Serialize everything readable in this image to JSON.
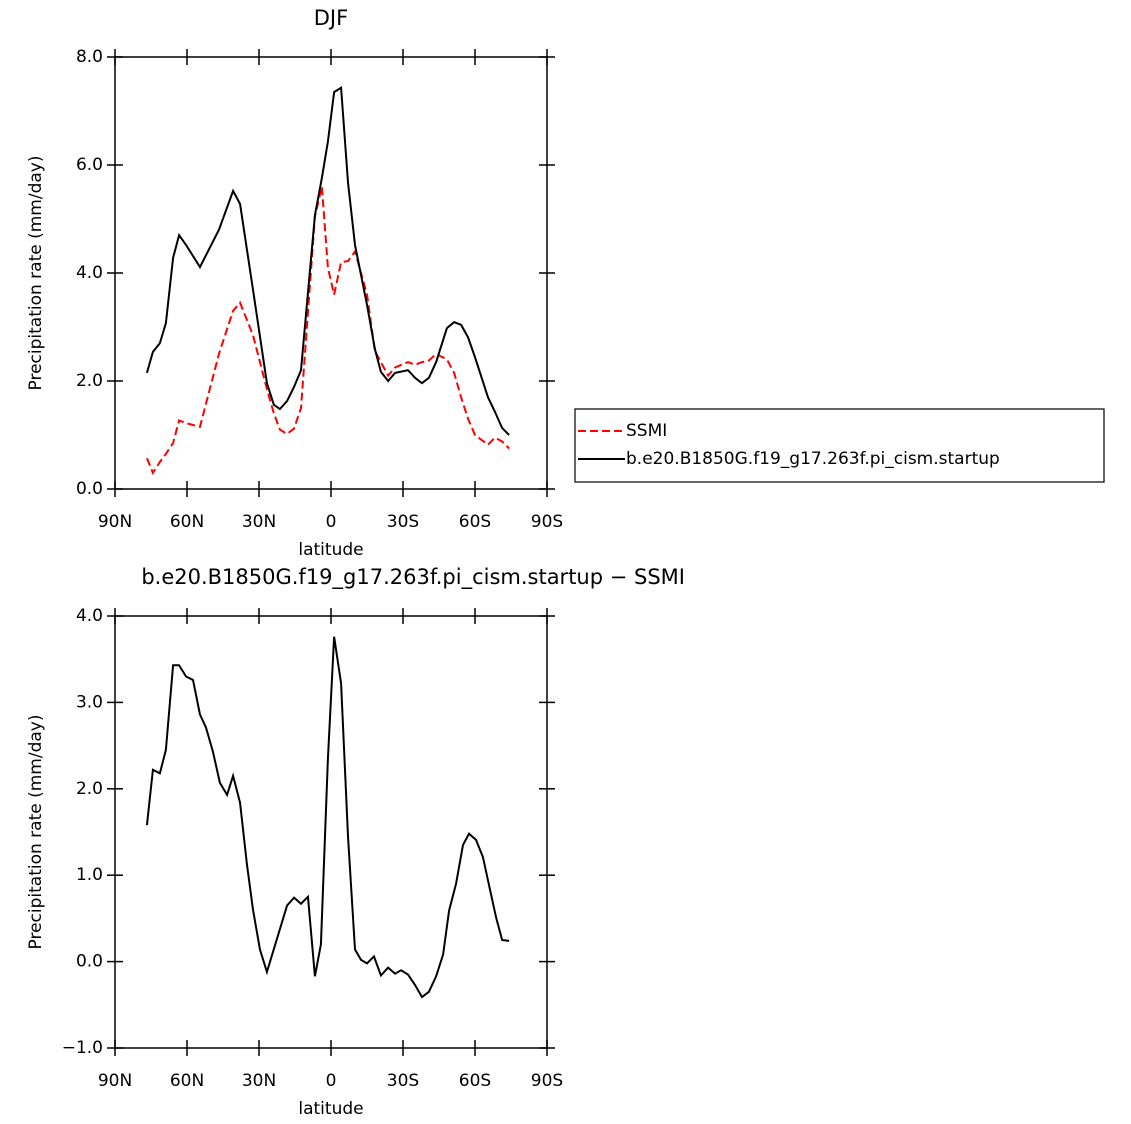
{
  "chart_data": [
    {
      "type": "line",
      "title": "DJF",
      "x_label": "latitude",
      "y_label": "Precipitation rate (mm/day)",
      "x": [
        76.7,
        74.2,
        71.3,
        68.8,
        65.8,
        63.3,
        60.4,
        54.6,
        46.7,
        40.8,
        37.9,
        32.5,
        26.7,
        23.8,
        21.3,
        18.3,
        15.4,
        12.5,
        6.7,
        3.8,
        1.3,
        -1.3,
        -4.2,
        -7.1,
        -10,
        -15,
        -18.3,
        -20.8,
        -23.8,
        -26.7,
        -32.1,
        -35,
        -37.9,
        -40.8,
        -43.8,
        -48.3,
        -51.3,
        -54.2,
        -57.1,
        -60,
        -65.4,
        -68.3,
        -71.3,
        -74.2
      ],
      "xlim": [
        90,
        -90
      ],
      "xticks": [
        {
          "value": 90,
          "label": "90N"
        },
        {
          "value": 60,
          "label": "60N"
        },
        {
          "value": 30,
          "label": "30N"
        },
        0,
        {
          "value": -30,
          "label": "30S"
        },
        {
          "value": -60,
          "label": "60S"
        },
        {
          "value": -90,
          "label": "90S"
        }
      ],
      "ylim": [
        0,
        8
      ],
      "yticks": [
        {
          "value": 0,
          "label": "0.0"
        },
        {
          "value": 2,
          "label": "2.0"
        },
        {
          "value": 4,
          "label": "4.0"
        },
        {
          "value": 6,
          "label": "6.0"
        },
        {
          "value": 8,
          "label": "8.0"
        }
      ],
      "legend": "right",
      "series": [
        {
          "name": "SSMI",
          "color": "#ff0000",
          "dashed": true,
          "values": [
            0.57,
            0.3,
            0.5,
            0.65,
            0.85,
            1.27,
            1.22,
            1.15,
            2.5,
            3.3,
            3.45,
            2.85,
            1.85,
            1.4,
            1.1,
            1.02,
            1.12,
            1.5,
            5.05,
            5.6,
            4.1,
            3.6,
            4.2,
            4.22,
            4.4,
            3.6,
            2.55,
            2.35,
            2.1,
            2.25,
            2.35,
            2.3,
            2.35,
            2.38,
            2.5,
            2.4,
            2.15,
            1.7,
            1.3,
            1.0,
            0.82,
            0.95,
            0.88,
            0.75
          ]
        },
        {
          "name": "b.e20.B1850G.f19_g17.263f.pi_cism.startup",
          "color": "#000000",
          "dashed": false,
          "values": [
            2.15,
            2.54,
            2.7,
            3.07,
            4.28,
            4.7,
            4.52,
            4.11,
            4.8,
            5.52,
            5.28,
            3.69,
            1.96,
            1.56,
            1.48,
            1.63,
            1.89,
            2.2,
            5.07,
            5.76,
            6.43,
            7.35,
            7.43,
            5.67,
            4.52,
            3.41,
            2.59,
            2.17,
            2.0,
            2.15,
            2.2,
            2.06,
            1.96,
            2.06,
            2.35,
            2.98,
            3.09,
            3.04,
            2.81,
            2.44,
            1.7,
            1.43,
            1.13,
            1.0
          ]
        }
      ]
    },
    {
      "type": "line",
      "title": "b.e20.B1850G.f19_g17.263f.pi_cism.startup − SSMI",
      "x_label": "latitude",
      "y_label": "Precipitation rate (mm/day)",
      "x": [
        76.7,
        74.2,
        71.3,
        68.8,
        65.8,
        63.3,
        60.4,
        57.5,
        54.6,
        52.1,
        49.2,
        46.3,
        43.3,
        40.8,
        37.9,
        35,
        32.5,
        29.6,
        26.7,
        18.3,
        15.4,
        12.5,
        9.6,
        6.7,
        4.2,
        1.3,
        -1.3,
        -4.2,
        -7.1,
        -10,
        -12.5,
        -15,
        -17.9,
        -20.8,
        -23.8,
        -26.7,
        -29.2,
        -32.1,
        -35,
        -37.9,
        -40.8,
        -43.8,
        -46.7,
        -49.2,
        -52.1,
        -55,
        -57.5,
        -60.4,
        -63.3,
        -65.8,
        -68.8,
        -71.3,
        -74.2
      ],
      "xlim": [
        90,
        -90
      ],
      "xticks": [
        {
          "value": 90,
          "label": "90N"
        },
        {
          "value": 60,
          "label": "60N"
        },
        {
          "value": 30,
          "label": "30N"
        },
        0,
        {
          "value": -30,
          "label": "30S"
        },
        {
          "value": -60,
          "label": "60S"
        },
        {
          "value": -90,
          "label": "90S"
        }
      ],
      "ylim": [
        -1,
        4
      ],
      "yticks": [
        {
          "value": -1,
          "label": "−1.0"
        },
        {
          "value": 0,
          "label": "0.0"
        },
        {
          "value": 1,
          "label": "1.0"
        },
        {
          "value": 2,
          "label": "2.0"
        },
        {
          "value": 3,
          "label": "3.0"
        },
        {
          "value": 4,
          "label": "4.0"
        }
      ],
      "series": [
        {
          "color": "#000000",
          "dashed": false,
          "values": [
            1.58,
            2.22,
            2.18,
            2.45,
            3.43,
            3.43,
            3.3,
            3.26,
            2.86,
            2.71,
            2.43,
            2.07,
            1.93,
            2.15,
            1.84,
            1.12,
            0.6,
            0.14,
            -0.12,
            0.65,
            0.74,
            0.67,
            0.75,
            -0.17,
            0.2,
            2.34,
            3.76,
            3.22,
            1.44,
            0.14,
            0.02,
            -0.02,
            0.06,
            -0.16,
            -0.07,
            -0.14,
            -0.1,
            -0.15,
            -0.27,
            -0.41,
            -0.35,
            -0.17,
            0.08,
            0.59,
            0.9,
            1.35,
            1.48,
            1.41,
            1.21,
            0.89,
            0.51,
            0.25,
            0.24
          ]
        }
      ]
    }
  ]
}
